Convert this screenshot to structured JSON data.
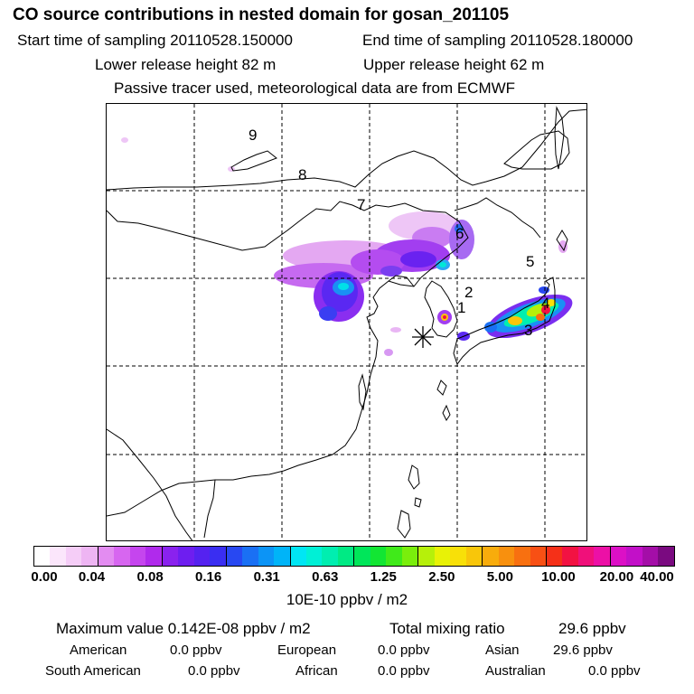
{
  "header": {
    "title": "CO  source contributions in nested domain for gosan_201105",
    "start_label": "Start time of sampling 20110528.150000",
    "end_label": "End time of sampling 20110528.180000",
    "lower_height": "Lower release height   82 m",
    "upper_height": "Upper release height   62 m",
    "note": "Passive tracer used, meteorological data are from ECMWF"
  },
  "map": {
    "region_labels": [
      "1",
      "2",
      "3",
      "4",
      "5",
      "6",
      "7",
      "8",
      "9"
    ],
    "receptor_marker": "asterisk",
    "gridlines": "dashed"
  },
  "colorbar": {
    "tick_labels": [
      "0.00",
      "0.04",
      "0.08",
      "0.16",
      "0.31",
      "0.63",
      "1.25",
      "2.50",
      "5.00",
      "10.00",
      "20.00",
      "40.00"
    ],
    "units": "10E-10 ppbv / m2",
    "colors": [
      "#ffffff",
      "#fbe6fb",
      "#f5cdf7",
      "#eeb5f3",
      "#e38cf1",
      "#d766f0",
      "#c545ee",
      "#b02aec",
      "#8a22ee",
      "#6e1ef0",
      "#5522f0",
      "#3a2ef2",
      "#2848f2",
      "#1a70f4",
      "#0c94f6",
      "#00b4f8",
      "#00e6f4",
      "#00f0d6",
      "#00eeb0",
      "#00ea84",
      "#00e65a",
      "#12e633",
      "#40ea1a",
      "#7aee0c",
      "#b6f00a",
      "#e8f206",
      "#f8e008",
      "#f8c60a",
      "#f8ac0c",
      "#f8900e",
      "#f87010",
      "#f85014",
      "#f53018",
      "#f21242",
      "#f0107a",
      "#ec10a6",
      "#dc10c6",
      "#c210c8",
      "#a40ea8",
      "#7a0a80"
    ]
  },
  "stats": {
    "max_value": "Maximum value  0.142E-08 ppbv / m2",
    "total_mixing": "Total mixing ratio",
    "total_value": "29.6 ppbv"
  },
  "regions": {
    "american": "American",
    "american_val": "0.0 ppbv",
    "european": "European",
    "european_val": "0.0 ppbv",
    "asian": "Asian",
    "asian_val": "29.6 ppbv",
    "south_american": "South American",
    "south_american_val": "0.0 ppbv",
    "african": "African",
    "african_val": "0.0 ppbv",
    "australian": "Australian",
    "australian_val": "0.0 ppbv"
  }
}
